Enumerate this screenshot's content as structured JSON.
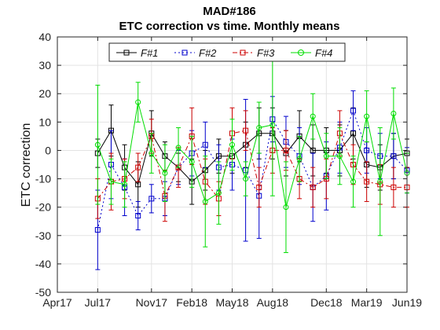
{
  "chart_data": {
    "type": "line",
    "title_line1": "MAD#186",
    "title_line2": "ETC correction vs time. Monthly means",
    "xlabel": "",
    "ylabel": "ETC correction",
    "ylim": [
      -50,
      40
    ],
    "yticks": [
      -50,
      -40,
      -30,
      -20,
      -10,
      0,
      10,
      20,
      30,
      40
    ],
    "xlim": [
      "2017-04",
      "2019-06"
    ],
    "xticks": [
      {
        "label": "Apr17",
        "month": "2017-04"
      },
      {
        "label": "Jul17",
        "month": "2017-07"
      },
      {
        "label": "Nov17",
        "month": "2017-11"
      },
      {
        "label": "Feb18",
        "month": "2018-02"
      },
      {
        "label": "May18",
        "month": "2018-05"
      },
      {
        "label": "Aug18",
        "month": "2018-08"
      },
      {
        "label": "Dec18",
        "month": "2018-12"
      },
      {
        "label": "Mar19",
        "month": "2019-03"
      },
      {
        "label": "Jun19",
        "month": "2019-06"
      }
    ],
    "grid": true,
    "legend_position": "top",
    "x": [
      "2017-07",
      "2017-08",
      "2017-09",
      "2017-10",
      "2017-11",
      "2017-12",
      "2018-01",
      "2018-02",
      "2018-03",
      "2018-04",
      "2018-05",
      "2018-06",
      "2018-07",
      "2018-08",
      "2018-09",
      "2018-10",
      "2018-11",
      "2018-12",
      "2019-01",
      "2019-02",
      "2019-03",
      "2019-04",
      "2019-05",
      "2019-06"
    ],
    "series": [
      {
        "name": "F#1",
        "color": "#000000",
        "dash": "",
        "marker": "square",
        "values": [
          -1,
          7,
          -6,
          -12,
          6,
          -2,
          -6,
          -11,
          -7,
          -2,
          -2,
          2,
          6,
          6,
          -1,
          5,
          0,
          0,
          0,
          6,
          -5,
          -6,
          -2,
          -1
        ],
        "errors": [
          5,
          9,
          8,
          8,
          8,
          5,
          5,
          8,
          7,
          6,
          6,
          8,
          9,
          9,
          8,
          9,
          9,
          8,
          9,
          9,
          8,
          8,
          8,
          5
        ]
      },
      {
        "name": "F#2",
        "color": "#0000cc",
        "dash": "2 3",
        "marker": "square",
        "values": [
          -28,
          -5,
          -13,
          -23,
          -17,
          -17,
          -6,
          -1,
          2,
          -6,
          -5,
          -7,
          -16,
          11,
          3,
          -2,
          -13,
          -9,
          1,
          14,
          0,
          -2,
          -2,
          -7
        ],
        "errors": [
          14,
          12,
          10,
          5,
          5,
          6,
          6,
          8,
          8,
          8,
          9,
          25,
          15,
          8,
          9,
          10,
          12,
          12,
          9,
          7,
          8,
          8,
          8,
          8
        ]
      },
      {
        "name": "F#3",
        "color": "#cc0000",
        "dash": "6 3 2 3",
        "marker": "square",
        "values": [
          -17,
          -11,
          -10,
          -6,
          5,
          -16,
          -6,
          5,
          -11,
          -17,
          6,
          7,
          -13,
          0,
          0,
          -10,
          -13,
          -10,
          6,
          -5,
          -11,
          -12,
          -13,
          -13
        ],
        "errors": [
          7,
          10,
          7,
          5,
          6,
          9,
          7,
          10,
          8,
          6,
          9,
          7,
          7,
          8,
          7,
          7,
          7,
          7,
          8,
          7,
          7,
          7,
          7,
          7
        ]
      },
      {
        "name": "F#4",
        "color": "#00dd00",
        "dash": "",
        "marker": "circle",
        "values": [
          2,
          -11,
          -12,
          17,
          -1,
          -8,
          1,
          -4,
          -18,
          -15,
          2,
          -10,
          8,
          9,
          -20,
          -3,
          12,
          -2,
          -2,
          -11,
          12,
          -11,
          13,
          -8
        ],
        "errors": [
          21,
          8,
          8,
          7,
          7,
          10,
          7,
          9,
          16,
          11,
          9,
          6,
          9,
          25,
          16,
          8,
          8,
          8,
          10,
          9,
          9,
          19,
          9,
          7
        ]
      }
    ]
  }
}
